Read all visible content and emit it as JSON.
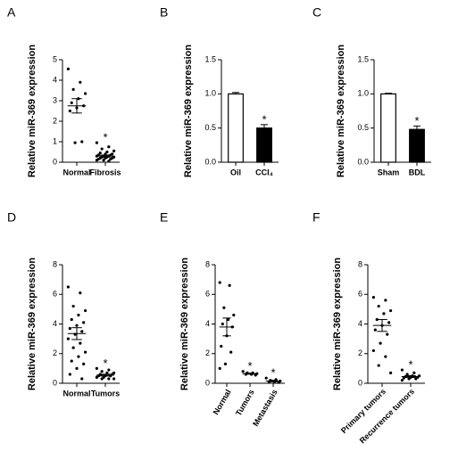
{
  "chart_data": [
    {
      "type": "dotplot",
      "panel": "A",
      "ylabel": "Relative miR-369 expression",
      "categories": [
        "Normal",
        "Fibrosis"
      ],
      "points": [
        [
          4.55,
          3.9,
          3.55,
          3.35,
          3.1,
          2.9,
          2.75,
          2.65,
          2.5,
          1.0,
          0.95
        ],
        [
          0.95,
          0.75,
          0.65,
          0.55,
          0.5,
          0.45,
          0.4,
          0.4,
          0.35,
          0.35,
          0.3,
          0.3,
          0.3,
          0.25,
          0.25,
          0.25,
          0.2,
          0.2,
          0.2,
          0.15,
          0.15,
          0.1,
          0.1,
          0.05
        ]
      ],
      "means": [
        2.75,
        0.3
      ],
      "errors": [
        0.35,
        0.05
      ],
      "significance": [
        null,
        "*"
      ],
      "color": "#000000",
      "ylim": [
        0,
        5
      ],
      "yticks": [
        0,
        1,
        2,
        3,
        4,
        5
      ]
    },
    {
      "type": "bar",
      "panel": "B",
      "ylabel": "Relative miR-369 expression",
      "categories": [
        "Oil",
        "CCl₄"
      ],
      "values": [
        1.0,
        0.5
      ],
      "errors": [
        0.02,
        0.05
      ],
      "significance": [
        null,
        "*"
      ],
      "colors": [
        "#ffffff",
        "#000000"
      ],
      "ylim": [
        0,
        1.5
      ],
      "yticks": [
        {
          "value": 0,
          "label": "0.0"
        },
        0.5,
        {
          "value": 1,
          "label": "1.0"
        },
        1.5
      ]
    },
    {
      "type": "bar",
      "panel": "C",
      "ylabel": "Relative miR-369 expression",
      "categories": [
        "Sham",
        "BDL"
      ],
      "values": [
        1.0,
        0.48
      ],
      "errors": [
        0.01,
        0.05
      ],
      "significance": [
        null,
        "*"
      ],
      "colors": [
        "#ffffff",
        "#000000"
      ],
      "ylim": [
        0,
        1.5
      ],
      "yticks": [
        {
          "value": 0,
          "label": "0.0"
        },
        0.5,
        {
          "value": 1,
          "label": "1.0"
        },
        1.5
      ]
    },
    {
      "type": "dotplot",
      "panel": "D",
      "ylabel": "Relative miR-369 expression",
      "categories": [
        "Normal",
        "Tumors"
      ],
      "points": [
        [
          6.5,
          6.1,
          5.2,
          4.9,
          4.6,
          4.3,
          4.1,
          3.9,
          3.7,
          3.5,
          3.3,
          3.0,
          2.7,
          2.4,
          2.1,
          1.8,
          1.5,
          1.3,
          1.0,
          0.6,
          0.3
        ],
        [
          1.0,
          0.9,
          0.8,
          0.7,
          0.7,
          0.6,
          0.6,
          0.5,
          0.5,
          0.5,
          0.4,
          0.4,
          0.3,
          0.3,
          0.3
        ]
      ],
      "means": [
        3.35,
        0.55
      ],
      "errors": [
        0.4,
        0.06
      ],
      "significance": [
        null,
        "*"
      ],
      "color": "#000000",
      "ylim": [
        0,
        8
      ],
      "yticks": [
        0,
        2,
        4,
        6,
        8
      ]
    },
    {
      "type": "dotplot",
      "panel": "E",
      "ylabel": "Relative miR-369 expression",
      "categories": [
        "Normal",
        "Tumors",
        "Metastasis"
      ],
      "points": [
        [
          6.8,
          6.6,
          5.1,
          4.6,
          4.3,
          4.0,
          3.8,
          3.2,
          2.5,
          2.1,
          1.3,
          1.0
        ],
        [
          0.8,
          0.7,
          0.7,
          0.65,
          0.6,
          0.6,
          0.55
        ],
        [
          0.35,
          0.25,
          0.2,
          0.15,
          0.1,
          0.1,
          0.05
        ]
      ],
      "means": [
        3.8,
        0.65,
        0.15
      ],
      "errors": [
        0.6,
        0.04,
        0.05
      ],
      "significance": [
        null,
        "*",
        "*"
      ],
      "color": "#000000",
      "ylim": [
        0,
        8
      ],
      "yticks": [
        0,
        2,
        4,
        6,
        8
      ]
    },
    {
      "type": "dotplot",
      "panel": "F",
      "ylabel": "Relative miR-369 expression",
      "categories": [
        "Primary tumors",
        "Recurrence tumors"
      ],
      "points": [
        [
          5.8,
          5.6,
          5.2,
          4.9,
          4.7,
          4.3,
          4.1,
          3.9,
          3.6,
          3.3,
          2.7,
          2.2,
          1.8,
          1.2,
          0.7
        ],
        [
          0.9,
          0.7,
          0.6,
          0.5,
          0.5,
          0.45,
          0.4,
          0.4,
          0.35,
          0.3,
          0.3,
          0.2
        ]
      ],
      "means": [
        3.9,
        0.45
      ],
      "errors": [
        0.4,
        0.06
      ],
      "significance": [
        null,
        "*"
      ],
      "color": "#000000",
      "ylim": [
        0,
        8
      ],
      "yticks": [
        0,
        2,
        4,
        6,
        8
      ]
    }
  ]
}
